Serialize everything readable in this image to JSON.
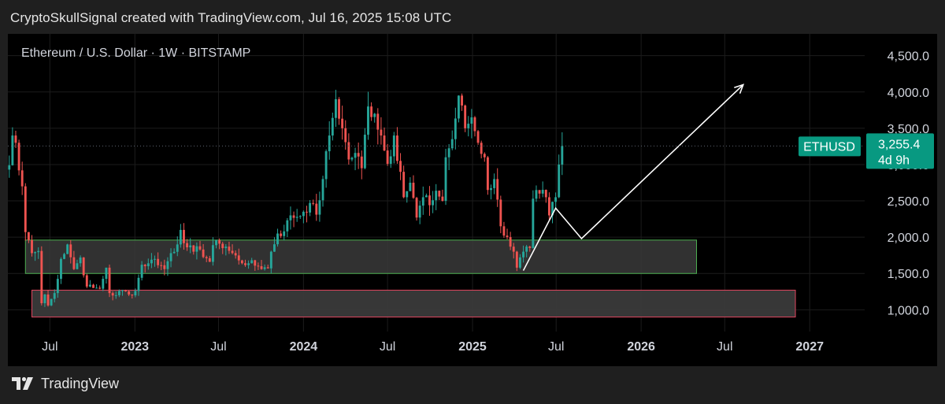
{
  "header": {
    "attribution": "CryptoSkullSignal created with TradingView.com, Jul 16, 2025 15:08 UTC"
  },
  "footer": {
    "brand": "TradingView",
    "logo_icon": "tradingview-logo-icon"
  },
  "colors": {
    "background": "#000000",
    "frame": "#1f1f1f",
    "bull": "#26a69a",
    "bear": "#ef5350",
    "support_zone_border": "#4caf50",
    "lower_zone_border": "#e0455f",
    "zone_fill": "#3a3a3a",
    "price_label_bg": "#089981",
    "projection": "#ffffff",
    "grid": "#1c1c1c",
    "text": "#d1d4dc"
  },
  "chart_data": {
    "type": "candlestick",
    "title": "Ethereum / U.S. Dollar · 1W · BITSTAMP",
    "symbol": "ETHUSD",
    "interval": "1W",
    "exchange": "BITSTAMP",
    "last_price": 3255.4,
    "last_price_label": "3,255.4",
    "countdown": "4d 9h",
    "y_axis": {
      "side": "right",
      "ylim": [
        700,
        4800
      ],
      "ticks": [
        1000,
        1500,
        2000,
        2500,
        3000,
        3500,
        4000,
        4500
      ],
      "tick_labels": [
        "1,000.0",
        "1,500.0",
        "2,000.0",
        "2,500.0",
        "3,000.0",
        "3,500.0",
        "4,000.0",
        "4,500.0"
      ]
    },
    "x_axis": {
      "xlim": [
        "2022-04-01",
        "2027-04-30"
      ],
      "ticks": [
        {
          "date": "2022-07-01",
          "label": "Jul",
          "bold": false
        },
        {
          "date": "2023-01-01",
          "label": "2023",
          "bold": true
        },
        {
          "date": "2023-07-01",
          "label": "Jul",
          "bold": false
        },
        {
          "date": "2024-01-01",
          "label": "2024",
          "bold": true
        },
        {
          "date": "2024-07-01",
          "label": "Jul",
          "bold": false
        },
        {
          "date": "2025-01-01",
          "label": "2025",
          "bold": true
        },
        {
          "date": "2025-07-01",
          "label": "Jul",
          "bold": false
        },
        {
          "date": "2026-01-01",
          "label": "2026",
          "bold": true
        },
        {
          "date": "2026-07-01",
          "label": "Jul",
          "bold": false
        },
        {
          "date": "2027-01-01",
          "label": "2027",
          "bold": true
        }
      ]
    },
    "series": [
      {
        "name": "ETHUSD",
        "weekly_close_anchors": [
          [
            "2022-04-04",
            2990
          ],
          [
            "2022-04-11",
            3400
          ],
          [
            "2022-04-18",
            3300
          ],
          [
            "2022-04-25",
            2920
          ],
          [
            "2022-05-02",
            2700
          ],
          [
            "2022-05-09",
            2070
          ],
          [
            "2022-05-16",
            1960
          ],
          [
            "2022-05-23",
            1780
          ],
          [
            "2022-06-06",
            1810
          ],
          [
            "2022-06-13",
            1090
          ],
          [
            "2022-06-20",
            1210
          ],
          [
            "2022-06-27",
            1060
          ],
          [
            "2022-07-11",
            1230
          ],
          [
            "2022-07-25",
            1700
          ],
          [
            "2022-08-08",
            1900
          ],
          [
            "2022-08-22",
            1560
          ],
          [
            "2022-09-05",
            1720
          ],
          [
            "2022-09-19",
            1320
          ],
          [
            "2022-10-03",
            1300
          ],
          [
            "2022-10-17",
            1290
          ],
          [
            "2022-10-31",
            1580
          ],
          [
            "2022-11-07",
            1230
          ],
          [
            "2022-11-21",
            1200
          ],
          [
            "2022-12-05",
            1270
          ],
          [
            "2022-12-19",
            1210
          ],
          [
            "2023-01-02",
            1260
          ],
          [
            "2023-01-16",
            1620
          ],
          [
            "2023-01-30",
            1640
          ],
          [
            "2023-02-13",
            1700
          ],
          [
            "2023-03-06",
            1560
          ],
          [
            "2023-03-20",
            1780
          ],
          [
            "2023-04-03",
            1900
          ],
          [
            "2023-04-10",
            2100
          ],
          [
            "2023-04-24",
            1860
          ],
          [
            "2023-05-08",
            1800
          ],
          [
            "2023-05-22",
            1830
          ],
          [
            "2023-06-12",
            1660
          ],
          [
            "2023-06-19",
            1890
          ],
          [
            "2023-07-03",
            1910
          ],
          [
            "2023-07-17",
            1870
          ],
          [
            "2023-08-14",
            1680
          ],
          [
            "2023-09-04",
            1640
          ],
          [
            "2023-09-25",
            1600
          ],
          [
            "2023-10-16",
            1570
          ],
          [
            "2023-10-23",
            1800
          ],
          [
            "2023-11-06",
            2050
          ],
          [
            "2023-11-20",
            2080
          ],
          [
            "2023-12-04",
            2300
          ],
          [
            "2023-12-18",
            2280
          ],
          [
            "2024-01-01",
            2350
          ],
          [
            "2024-01-15",
            2470
          ],
          [
            "2024-01-29",
            2310
          ],
          [
            "2024-02-12",
            2800
          ],
          [
            "2024-02-26",
            3400
          ],
          [
            "2024-03-11",
            3900
          ],
          [
            "2024-03-25",
            3500
          ],
          [
            "2024-04-08",
            3070
          ],
          [
            "2024-04-22",
            3160
          ],
          [
            "2024-05-06",
            2950
          ],
          [
            "2024-05-20",
            3800
          ],
          [
            "2024-06-03",
            3700
          ],
          [
            "2024-06-17",
            3400
          ],
          [
            "2024-07-01",
            3010
          ],
          [
            "2024-07-15",
            3400
          ],
          [
            "2024-07-29",
            2900
          ],
          [
            "2024-08-05",
            2550
          ],
          [
            "2024-08-19",
            2750
          ],
          [
            "2024-09-02",
            2270
          ],
          [
            "2024-09-16",
            2550
          ],
          [
            "2024-09-30",
            2440
          ],
          [
            "2024-10-14",
            2640
          ],
          [
            "2024-10-28",
            2500
          ],
          [
            "2024-11-04",
            3100
          ],
          [
            "2024-11-18",
            3350
          ],
          [
            "2024-12-02",
            3950
          ],
          [
            "2024-12-16",
            3500
          ],
          [
            "2024-12-30",
            3650
          ],
          [
            "2025-01-13",
            3300
          ],
          [
            "2025-01-27",
            3100
          ],
          [
            "2025-02-03",
            2650
          ],
          [
            "2025-02-17",
            2800
          ],
          [
            "2025-03-03",
            2150
          ],
          [
            "2025-03-17",
            2000
          ],
          [
            "2025-03-31",
            1800
          ],
          [
            "2025-04-07",
            1580
          ],
          [
            "2025-04-21",
            1800
          ],
          [
            "2025-05-05",
            1850
          ],
          [
            "2025-05-12",
            2530
          ],
          [
            "2025-05-26",
            2600
          ],
          [
            "2025-06-09",
            2550
          ],
          [
            "2025-06-16",
            2300
          ],
          [
            "2025-06-30",
            2550
          ],
          [
            "2025-07-07",
            3000
          ],
          [
            "2025-07-14",
            3255.4
          ]
        ]
      }
    ],
    "zones": [
      {
        "name": "support-zone",
        "from": "2022-05-09",
        "to": "2026-05-01",
        "low": 1500,
        "high": 1960
      },
      {
        "name": "lower-zone",
        "from": "2022-05-23",
        "to": "2026-12-01",
        "low": 900,
        "high": 1270
      }
    ],
    "projection_path": [
      [
        "2025-04-21",
        1540
      ],
      [
        "2025-06-30",
        2400
      ],
      [
        "2025-08-25",
        1980
      ],
      [
        "2026-08-10",
        4100
      ]
    ],
    "grid": true,
    "legend": "none"
  }
}
